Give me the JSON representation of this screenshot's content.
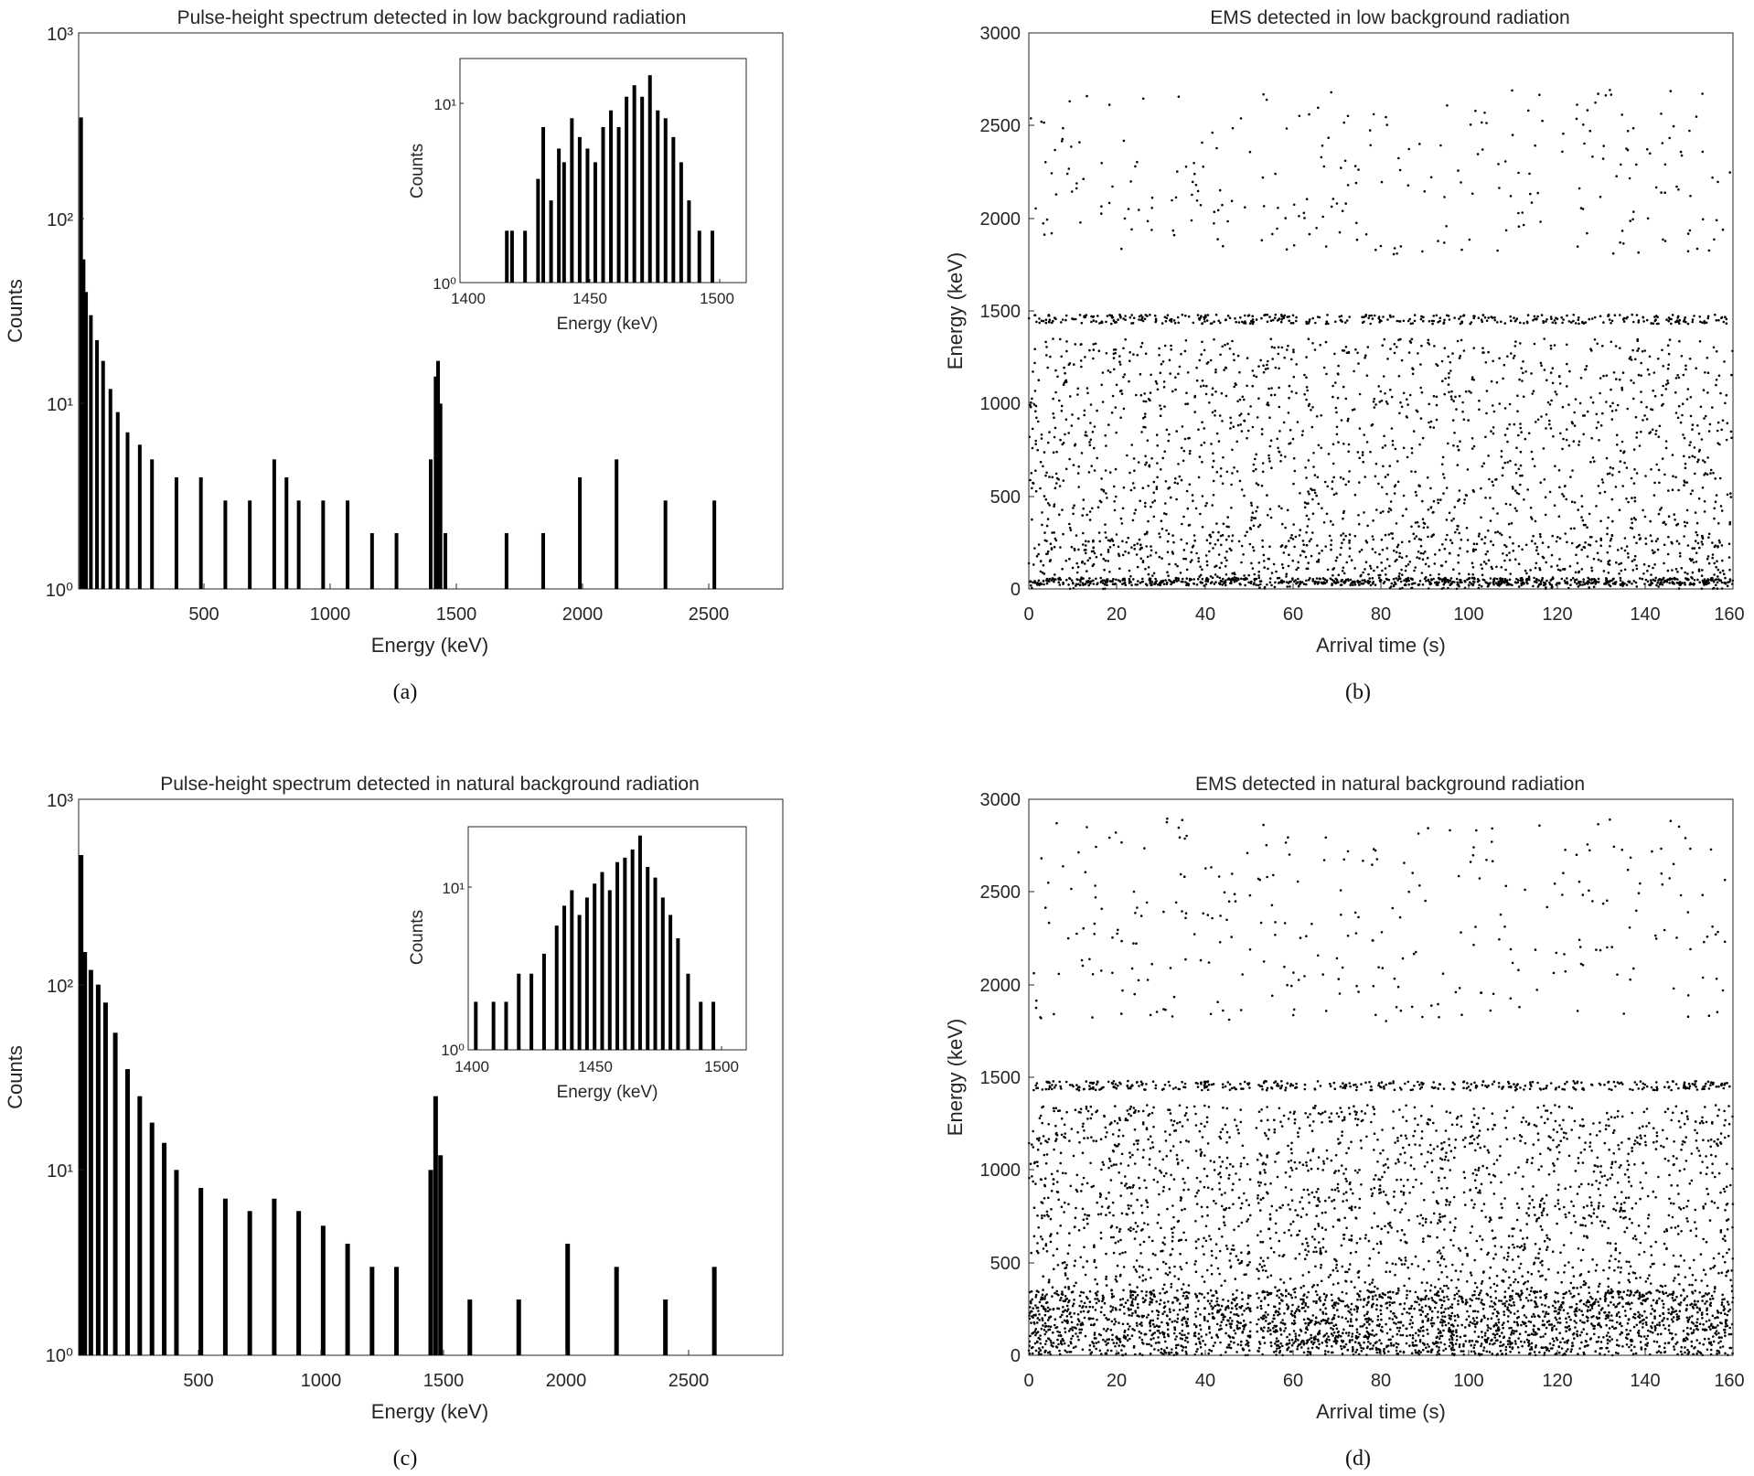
{
  "figure": {
    "panels": [
      {
        "id": "a",
        "caption": "(a)",
        "title": "Pulse-height spectrum detected in low background radiation",
        "xlabel": "Energy (keV)",
        "ylabel": "Counts",
        "inset": {
          "xlabel": "Energy (keV)",
          "ylabel": "Counts",
          "xticks": [
            "1400",
            "1450",
            "1500"
          ],
          "yticks": [
            "10⁰",
            "10¹"
          ]
        },
        "xticks": [
          "500",
          "1000",
          "1500",
          "2000",
          "2500"
        ],
        "yticks": [
          "10⁰",
          "10¹",
          "10²",
          "10³"
        ]
      },
      {
        "id": "b",
        "caption": "(b)",
        "title": "EMS detected in low background radiation",
        "xlabel": "Arrival time (s)",
        "ylabel": "Energy (keV)",
        "xticks": [
          "0",
          "20",
          "40",
          "60",
          "80",
          "100",
          "120",
          "140",
          "160"
        ],
        "yticks": [
          "0",
          "500",
          "1000",
          "1500",
          "2000",
          "2500",
          "3000"
        ]
      },
      {
        "id": "c",
        "caption": "(c)",
        "title": "Pulse-height spectrum detected in natural background radiation",
        "xlabel": "Energy (keV)",
        "ylabel": "Counts",
        "inset": {
          "xlabel": "Energy (keV)",
          "ylabel": "Counts",
          "xticks": [
            "1400",
            "1450",
            "1500"
          ],
          "yticks": [
            "10⁰",
            "10¹"
          ]
        },
        "xticks": [
          "500",
          "1000",
          "1500",
          "2000",
          "2500"
        ],
        "yticks": [
          "10⁰",
          "10¹",
          "10²",
          "10³"
        ]
      },
      {
        "id": "d",
        "caption": "(d)",
        "title": "EMS detected in natural background radiation",
        "xlabel": "Arrival time (s)",
        "ylabel": "Energy (keV)",
        "xticks": [
          "0",
          "20",
          "40",
          "60",
          "80",
          "100",
          "120",
          "140",
          "160"
        ],
        "yticks": [
          "0",
          "500",
          "1000",
          "1500",
          "2000",
          "2500",
          "3000"
        ]
      }
    ]
  },
  "chart_data": [
    {
      "type": "bar",
      "panel": "a",
      "title": "Pulse-height spectrum detected in low background radiation",
      "xlabel": "Energy (keV)",
      "ylabel": "Counts",
      "xlim": [
        0,
        2880
      ],
      "ylim": [
        1,
        1000
      ],
      "yscale": "log",
      "grid": false,
      "bar_color": "#000000",
      "bins": [
        {
          "e": 10,
          "c": 350
        },
        {
          "e": 20,
          "c": 60
        },
        {
          "e": 30,
          "c": 40
        },
        {
          "e": 50,
          "c": 30
        },
        {
          "e": 75,
          "c": 22
        },
        {
          "e": 100,
          "c": 17
        },
        {
          "e": 130,
          "c": 12
        },
        {
          "e": 160,
          "c": 9
        },
        {
          "e": 200,
          "c": 7
        },
        {
          "e": 250,
          "c": 6
        },
        {
          "e": 300,
          "c": 5
        },
        {
          "e": 400,
          "c": 4
        },
        {
          "e": 500,
          "c": 4
        },
        {
          "e": 600,
          "c": 3
        },
        {
          "e": 700,
          "c": 3
        },
        {
          "e": 800,
          "c": 5
        },
        {
          "e": 850,
          "c": 4
        },
        {
          "e": 900,
          "c": 3
        },
        {
          "e": 1000,
          "c": 3
        },
        {
          "e": 1100,
          "c": 3
        },
        {
          "e": 1200,
          "c": 2
        },
        {
          "e": 1300,
          "c": 2
        },
        {
          "e": 1440,
          "c": 5
        },
        {
          "e": 1460,
          "c": 14
        },
        {
          "e": 1470,
          "c": 17
        },
        {
          "e": 1480,
          "c": 10
        },
        {
          "e": 1500,
          "c": 2
        },
        {
          "e": 1750,
          "c": 2
        },
        {
          "e": 1900,
          "c": 2
        },
        {
          "e": 2050,
          "c": 4
        },
        {
          "e": 2200,
          "c": 5
        },
        {
          "e": 2400,
          "c": 3
        },
        {
          "e": 2600,
          "c": 3
        }
      ],
      "inset": {
        "type": "bar",
        "xlabel": "Energy (keV)",
        "ylabel": "Counts",
        "xlim": [
          1400,
          1510
        ],
        "ylim": [
          1,
          20
        ],
        "yscale": "log",
        "bins": [
          {
            "e": 1418,
            "c": 2
          },
          {
            "e": 1420,
            "c": 2
          },
          {
            "e": 1425,
            "c": 2
          },
          {
            "e": 1430,
            "c": 4
          },
          {
            "e": 1432,
            "c": 8
          },
          {
            "e": 1435,
            "c": 3
          },
          {
            "e": 1438,
            "c": 6
          },
          {
            "e": 1440,
            "c": 5
          },
          {
            "e": 1443,
            "c": 9
          },
          {
            "e": 1446,
            "c": 7
          },
          {
            "e": 1449,
            "c": 6
          },
          {
            "e": 1452,
            "c": 5
          },
          {
            "e": 1455,
            "c": 8
          },
          {
            "e": 1458,
            "c": 10
          },
          {
            "e": 1461,
            "c": 8
          },
          {
            "e": 1464,
            "c": 12
          },
          {
            "e": 1467,
            "c": 14
          },
          {
            "e": 1470,
            "c": 12
          },
          {
            "e": 1473,
            "c": 16
          },
          {
            "e": 1476,
            "c": 10
          },
          {
            "e": 1479,
            "c": 9
          },
          {
            "e": 1482,
            "c": 7
          },
          {
            "e": 1485,
            "c": 5
          },
          {
            "e": 1488,
            "c": 3
          },
          {
            "e": 1492,
            "c": 2
          },
          {
            "e": 1497,
            "c": 2
          }
        ]
      }
    },
    {
      "type": "scatter",
      "panel": "b",
      "title": "EMS detected in low background radiation",
      "xlabel": "Arrival time (s)",
      "ylabel": "Energy (keV)",
      "xlim": [
        0,
        160
      ],
      "ylim": [
        0,
        3000
      ],
      "marker_color": "#000000",
      "bands": [
        {
          "emin": 20,
          "emax": 60,
          "density": "very high",
          "note": "continuous line near 40 keV"
        },
        {
          "emin": 0,
          "emax": 300,
          "density": "high"
        },
        {
          "emin": 300,
          "emax": 1350,
          "density": "medium"
        },
        {
          "emin": 1430,
          "emax": 1480,
          "density": "high",
          "note": "line near 1460 keV"
        },
        {
          "emin": 1800,
          "emax": 2700,
          "density": "low"
        }
      ]
    },
    {
      "type": "bar",
      "panel": "c",
      "title": "Pulse-height spectrum detected in natural background radiation",
      "xlabel": "Energy (keV)",
      "ylabel": "Counts",
      "xlim": [
        0,
        2880
      ],
      "ylim": [
        1,
        1000
      ],
      "yscale": "log",
      "grid": false,
      "bar_color": "#000000",
      "bins": [
        {
          "e": 10,
          "c": 500
        },
        {
          "e": 25,
          "c": 150
        },
        {
          "e": 50,
          "c": 120
        },
        {
          "e": 80,
          "c": 100
        },
        {
          "e": 110,
          "c": 80
        },
        {
          "e": 150,
          "c": 55
        },
        {
          "e": 200,
          "c": 35
        },
        {
          "e": 250,
          "c": 25
        },
        {
          "e": 300,
          "c": 18
        },
        {
          "e": 350,
          "c": 14
        },
        {
          "e": 400,
          "c": 10
        },
        {
          "e": 500,
          "c": 8
        },
        {
          "e": 600,
          "c": 7
        },
        {
          "e": 700,
          "c": 6
        },
        {
          "e": 800,
          "c": 7
        },
        {
          "e": 900,
          "c": 6
        },
        {
          "e": 1000,
          "c": 5
        },
        {
          "e": 1100,
          "c": 4
        },
        {
          "e": 1200,
          "c": 3
        },
        {
          "e": 1300,
          "c": 3
        },
        {
          "e": 1440,
          "c": 10
        },
        {
          "e": 1460,
          "c": 25
        },
        {
          "e": 1480,
          "c": 12
        },
        {
          "e": 1600,
          "c": 2
        },
        {
          "e": 1800,
          "c": 2
        },
        {
          "e": 2000,
          "c": 4
        },
        {
          "e": 2200,
          "c": 3
        },
        {
          "e": 2400,
          "c": 2
        },
        {
          "e": 2600,
          "c": 3
        }
      ],
      "inset": {
        "type": "bar",
        "xlabel": "Energy (keV)",
        "ylabel": "Counts",
        "xlim": [
          1400,
          1510
        ],
        "ylim": [
          1,
          25
        ],
        "yscale": "log",
        "bins": [
          {
            "e": 1403,
            "c": 2
          },
          {
            "e": 1410,
            "c": 2
          },
          {
            "e": 1415,
            "c": 2
          },
          {
            "e": 1420,
            "c": 3
          },
          {
            "e": 1425,
            "c": 3
          },
          {
            "e": 1430,
            "c": 4
          },
          {
            "e": 1435,
            "c": 6
          },
          {
            "e": 1438,
            "c": 8
          },
          {
            "e": 1441,
            "c": 10
          },
          {
            "e": 1444,
            "c": 7
          },
          {
            "e": 1447,
            "c": 9
          },
          {
            "e": 1450,
            "c": 11
          },
          {
            "e": 1453,
            "c": 13
          },
          {
            "e": 1456,
            "c": 10
          },
          {
            "e": 1459,
            "c": 15
          },
          {
            "e": 1462,
            "c": 16
          },
          {
            "e": 1465,
            "c": 18
          },
          {
            "e": 1468,
            "c": 22
          },
          {
            "e": 1471,
            "c": 14
          },
          {
            "e": 1474,
            "c": 12
          },
          {
            "e": 1477,
            "c": 9
          },
          {
            "e": 1480,
            "c": 7
          },
          {
            "e": 1483,
            "c": 5
          },
          {
            "e": 1487,
            "c": 3
          },
          {
            "e": 1492,
            "c": 2
          },
          {
            "e": 1497,
            "c": 2
          }
        ]
      }
    },
    {
      "type": "scatter",
      "panel": "d",
      "title": "EMS detected in natural background radiation",
      "xlabel": "Arrival time (s)",
      "ylabel": "Energy (keV)",
      "xlim": [
        0,
        160
      ],
      "ylim": [
        0,
        3000
      ],
      "marker_color": "#000000",
      "bands": [
        {
          "emin": 0,
          "emax": 350,
          "density": "very high"
        },
        {
          "emin": 350,
          "emax": 1350,
          "density": "high"
        },
        {
          "emin": 1430,
          "emax": 1480,
          "density": "high",
          "note": "line near 1460 keV"
        },
        {
          "emin": 1800,
          "emax": 2900,
          "density": "low"
        }
      ],
      "gaps_s": [
        37,
        51
      ]
    }
  ]
}
